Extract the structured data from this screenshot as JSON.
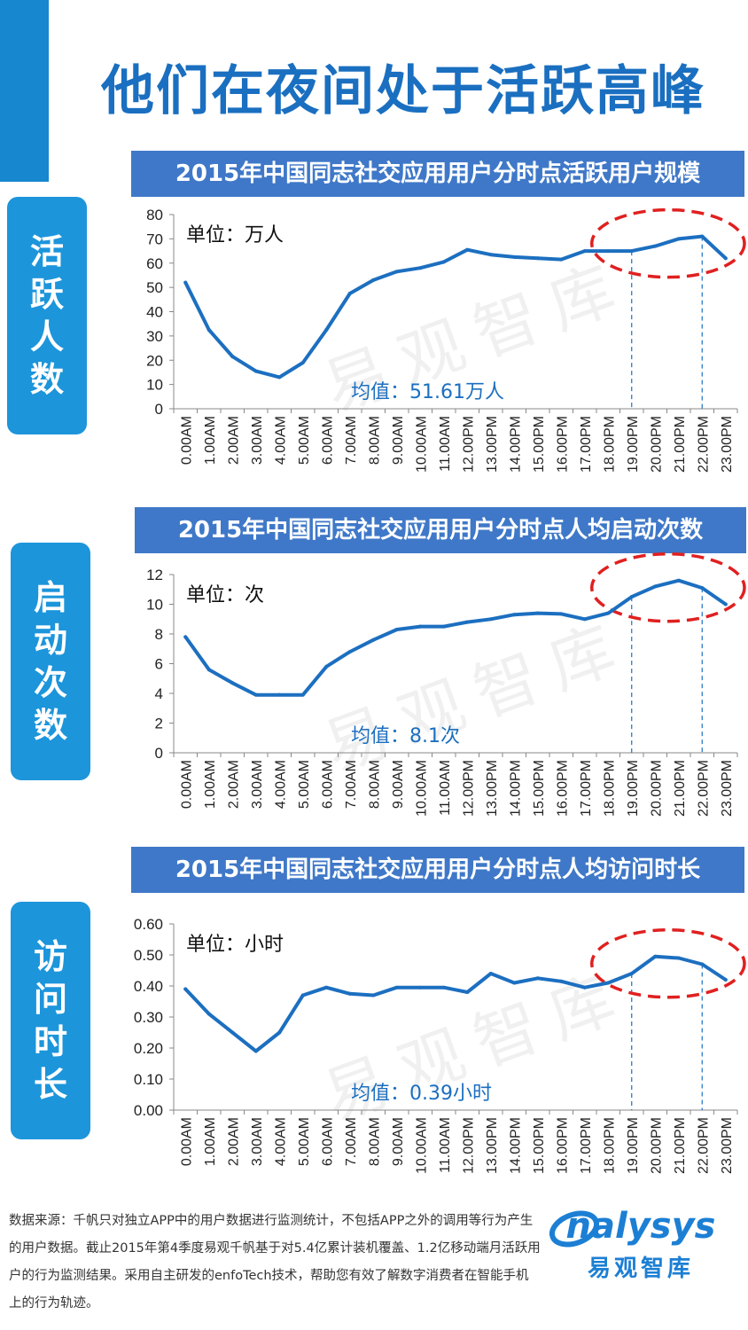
{
  "page": {
    "title": "他们在夜间处于活跃高峰",
    "watermark": "易观智库",
    "source_text": "数据来源：千帆只对独立APP中的用户数据进行监测统计，不包括APP之外的调用等行为产生的用户数据。截止2015年第4季度易观千帆基于对5.4亿累计装机覆盖、1.2亿移动端月活跃用户的行为监测结果。采用自主研发的enfoTech技术，帮助您有效了解数字消费者在智能手机上的行为轨迹。",
    "logo_en": "nalysys",
    "logo_cn": "易观智库"
  },
  "colors": {
    "line": "#1c6fc0",
    "header": "#3f78c8",
    "label": "#1c95db",
    "highlight": "#e02020"
  },
  "chart_data": [
    {
      "type": "line",
      "title": "2015年中国同志社交应用用户分时点活跃用户规模",
      "side_label": "活跃人数",
      "unit": "单位：万人",
      "mean_label": "均值：51.61万人",
      "categories": [
        "0.00AM",
        "1.00AM",
        "2.00AM",
        "3.00AM",
        "4.00AM",
        "5.00AM",
        "6.00AM",
        "7.00AM",
        "8.00AM",
        "9.00AM",
        "10.00AM",
        "11.00AM",
        "12.00PM",
        "13.00PM",
        "14.00PM",
        "15.00PM",
        "16.00PM",
        "17.00PM",
        "18.00PM",
        "19.00PM",
        "20.00PM",
        "21.00PM",
        "22.00PM",
        "23.00PM"
      ],
      "values": [
        52,
        32.5,
        21.5,
        15.5,
        13,
        19,
        32.5,
        47.5,
        53,
        56.5,
        58,
        60.5,
        65.5,
        63.5,
        62.5,
        62,
        61.5,
        65,
        65,
        65,
        67,
        70,
        71,
        62
      ],
      "ylim": [
        0,
        80
      ],
      "yticks": [
        "0",
        "10",
        "20",
        "30",
        "40",
        "50",
        "60",
        "70",
        "80"
      ],
      "highlight_range": [
        "19.00PM",
        "22.00PM"
      ]
    },
    {
      "type": "line",
      "title": "2015年中国同志社交应用用户分时点人均启动次数",
      "side_label": "启动次数",
      "unit": "单位：次",
      "mean_label": "均值：8.1次",
      "categories": [
        "0.00AM",
        "1.00AM",
        "2.00AM",
        "3.00AM",
        "4.00AM",
        "5.00AM",
        "6.00AM",
        "7.00AM",
        "8.00AM",
        "9.00AM",
        "10.00AM",
        "11.00AM",
        "12.00PM",
        "13.00PM",
        "14.00PM",
        "15.00PM",
        "16.00PM",
        "17.00PM",
        "18.00PM",
        "19.00PM",
        "20.00PM",
        "21.00PM",
        "22.00PM",
        "23.00PM"
      ],
      "values": [
        7.8,
        5.6,
        4.7,
        3.9,
        3.9,
        3.9,
        5.8,
        6.8,
        7.6,
        8.3,
        8.5,
        8.5,
        8.8,
        9.0,
        9.3,
        9.4,
        9.35,
        9.0,
        9.4,
        10.5,
        11.2,
        11.6,
        11.1,
        10.0
      ],
      "ylim": [
        0,
        12
      ],
      "yticks": [
        "0",
        "2",
        "4",
        "6",
        "8",
        "10",
        "12"
      ],
      "highlight_range": [
        "19.00PM",
        "22.00PM"
      ]
    },
    {
      "type": "line",
      "title": "2015年中国同志社交应用用户分时点人均访问时长",
      "side_label": "访问时长",
      "unit": "单位：小时",
      "mean_label": "均值：0.39小时",
      "categories": [
        "0.00AM",
        "1.00AM",
        "2.00AM",
        "3.00AM",
        "4.00AM",
        "5.00AM",
        "6.00AM",
        "7.00AM",
        "8.00AM",
        "9.00AM",
        "10.00AM",
        "11.00AM",
        "12.00PM",
        "13.00PM",
        "14.00PM",
        "15.00PM",
        "16.00PM",
        "17.00PM",
        "18.00PM",
        "19.00PM",
        "20.00PM",
        "21.00PM",
        "22.00PM",
        "23.00PM"
      ],
      "values": [
        0.39,
        0.31,
        0.25,
        0.19,
        0.25,
        0.37,
        0.395,
        0.375,
        0.37,
        0.395,
        0.395,
        0.395,
        0.38,
        0.44,
        0.41,
        0.425,
        0.415,
        0.395,
        0.41,
        0.44,
        0.495,
        0.49,
        0.47,
        0.42
      ],
      "ylim": [
        0,
        0.6
      ],
      "yticks": [
        "0.00",
        "0.10",
        "0.20",
        "0.30",
        "0.40",
        "0.50",
        "0.60"
      ],
      "highlight_range": [
        "19.00PM",
        "22.00PM"
      ]
    }
  ]
}
